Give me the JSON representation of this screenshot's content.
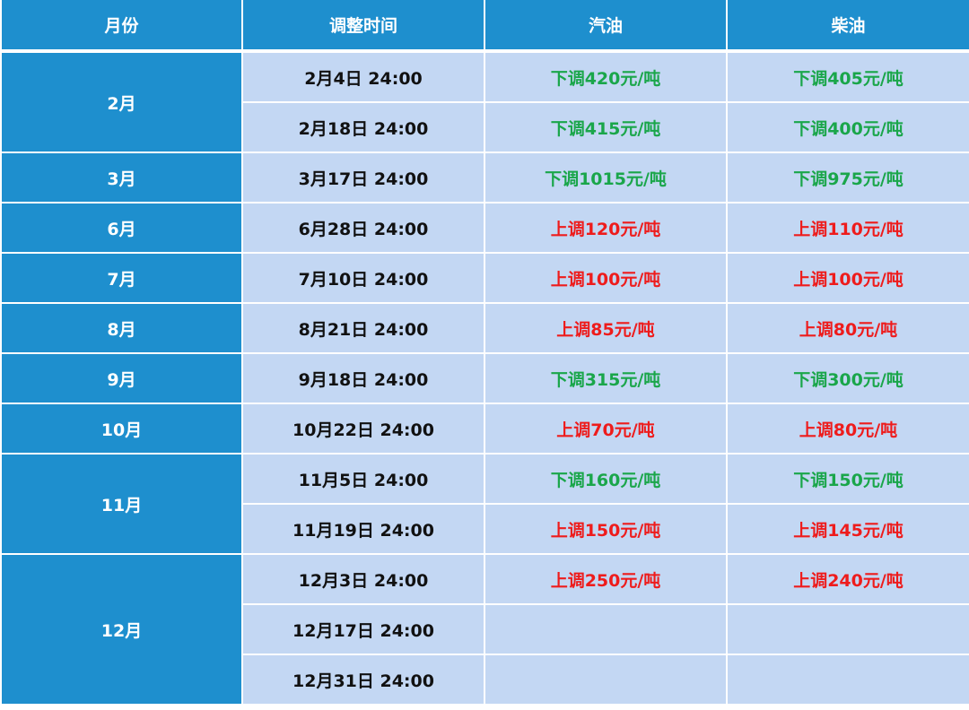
{
  "headers": {
    "month": "月份",
    "time": "调整时间",
    "gasoline": "汽油",
    "diesel": "柴油"
  },
  "colors": {
    "header_bg": "#1e8fce",
    "cell_bg": "#c3d7f3",
    "decrease": "#1aa64a",
    "increase": "#ee1c1c"
  },
  "groups": [
    {
      "month": "2月",
      "rows": [
        {
          "time": "2月4日 24:00",
          "gasoline": "下调420元/吨",
          "diesel": "下调405元/吨"
        },
        {
          "time": "2月18日 24:00",
          "gasoline": "下调415元/吨",
          "diesel": "下调400元/吨"
        }
      ]
    },
    {
      "month": "3月",
      "rows": [
        {
          "time": "3月17日 24:00",
          "gasoline": "下调1015元/吨",
          "diesel": "下调975元/吨"
        }
      ]
    },
    {
      "month": "6月",
      "rows": [
        {
          "time": "6月28日 24:00",
          "gasoline": "上调120元/吨",
          "diesel": "上调110元/吨"
        }
      ]
    },
    {
      "month": "7月",
      "rows": [
        {
          "time": "7月10日 24:00",
          "gasoline": "上调100元/吨",
          "diesel": "上调100元/吨"
        }
      ]
    },
    {
      "month": "8月",
      "rows": [
        {
          "time": "8月21日 24:00",
          "gasoline": "上调85元/吨",
          "diesel": "上调80元/吨"
        }
      ]
    },
    {
      "month": "9月",
      "rows": [
        {
          "time": "9月18日 24:00",
          "gasoline": "下调315元/吨",
          "diesel": "下调300元/吨"
        }
      ]
    },
    {
      "month": "10月",
      "rows": [
        {
          "time": "10月22日 24:00",
          "gasoline": "上调70元/吨",
          "diesel": "上调80元/吨"
        }
      ]
    },
    {
      "month": "11月",
      "rows": [
        {
          "time": "11月5日 24:00",
          "gasoline": "下调160元/吨",
          "diesel": "下调150元/吨"
        },
        {
          "time": "11月19日 24:00",
          "gasoline": "上调150元/吨",
          "diesel": "上调145元/吨"
        }
      ]
    },
    {
      "month": "12月",
      "rows": [
        {
          "time": "12月3日 24:00",
          "gasoline": "上调250元/吨",
          "diesel": "上调240元/吨"
        },
        {
          "time": "12月17日 24:00",
          "gasoline": "",
          "diesel": ""
        },
        {
          "time": "12月31日 24:00",
          "gasoline": "",
          "diesel": ""
        }
      ]
    }
  ]
}
